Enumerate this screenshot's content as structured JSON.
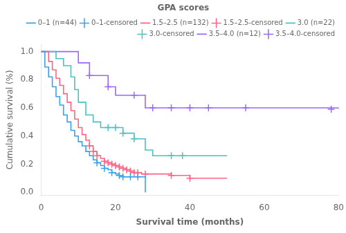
{
  "chart_data": {
    "type": "line",
    "title": "GPA scores",
    "xlabel": "Survival time (months)",
    "ylabel": "Cumulative survival (%)",
    "xlim": [
      0,
      80
    ],
    "ylim": [
      -0.02,
      1.05
    ],
    "xticks": [
      0,
      20,
      40,
      60,
      80
    ],
    "yticks": [
      {
        "value": 0.0,
        "label": "0.0"
      },
      0.2,
      0.4,
      0.6,
      0.8,
      {
        "value": 1.0,
        "label": "1.0"
      }
    ],
    "grid": false,
    "legend": "upper right",
    "series": [
      {
        "name": "0–1 (n=44)",
        "type": "step",
        "x": [
          0,
          1,
          2,
          3,
          4,
          5,
          6,
          7,
          8,
          9,
          10,
          11,
          12,
          13,
          14,
          15,
          16,
          17,
          18,
          19,
          20,
          21,
          22,
          23,
          24,
          25,
          26,
          27,
          28,
          28.01
        ],
        "values": [
          1.0,
          0.89,
          0.82,
          0.75,
          0.68,
          0.62,
          0.55,
          0.5,
          0.44,
          0.4,
          0.36,
          0.33,
          0.29,
          0.26,
          0.23,
          0.21,
          0.19,
          0.17,
          0.16,
          0.14,
          0.13,
          0.12,
          0.11,
          0.11,
          0.11,
          0.11,
          0.11,
          0.11,
          0.11,
          0.0
        ]
      },
      {
        "name": "0–1-censored",
        "type": "scatter",
        "marker": "plus",
        "x": [
          15,
          17,
          19,
          21,
          22,
          24,
          26
        ],
        "values": [
          0.21,
          0.17,
          0.14,
          0.12,
          0.11,
          0.11,
          0.11
        ]
      },
      {
        "name": "1.5–2.5 (n=132)",
        "type": "step",
        "x": [
          0,
          2,
          3,
          4,
          5,
          6,
          7,
          8,
          9,
          10,
          11,
          12,
          13,
          14,
          15,
          16,
          17,
          18,
          19,
          20,
          21,
          22,
          23,
          24,
          25,
          26,
          27,
          28,
          29,
          30,
          35,
          40,
          50
        ],
        "values": [
          1.0,
          0.93,
          0.87,
          0.81,
          0.76,
          0.7,
          0.64,
          0.58,
          0.52,
          0.46,
          0.41,
          0.37,
          0.33,
          0.29,
          0.26,
          0.24,
          0.22,
          0.21,
          0.2,
          0.19,
          0.18,
          0.17,
          0.16,
          0.15,
          0.14,
          0.14,
          0.13,
          0.13,
          0.13,
          0.13,
          0.12,
          0.1,
          0.1
        ]
      },
      {
        "name": "1.5–2.5-censored",
        "type": "scatter",
        "marker": "plus",
        "x": [
          13,
          14,
          15,
          17,
          18,
          19,
          20,
          21,
          22,
          23,
          24,
          25,
          26,
          28,
          35,
          40
        ],
        "values": [
          0.33,
          0.29,
          0.26,
          0.22,
          0.21,
          0.2,
          0.19,
          0.18,
          0.17,
          0.16,
          0.15,
          0.14,
          0.14,
          0.13,
          0.12,
          0.1
        ]
      },
      {
        "name": "3.0 (n=22)",
        "type": "step",
        "x": [
          0,
          4,
          6,
          8,
          9,
          10,
          12,
          14,
          16,
          18,
          20,
          22,
          25,
          28,
          30,
          35,
          40,
          45,
          50
        ],
        "values": [
          1.0,
          0.95,
          0.9,
          0.82,
          0.73,
          0.64,
          0.55,
          0.5,
          0.46,
          0.46,
          0.46,
          0.42,
          0.38,
          0.3,
          0.26,
          0.26,
          0.26,
          0.26,
          0.26
        ]
      },
      {
        "name": "3.0-censored",
        "type": "scatter",
        "marker": "plus",
        "x": [
          18,
          20,
          22,
          25,
          35,
          38
        ],
        "values": [
          0.46,
          0.46,
          0.42,
          0.38,
          0.26,
          0.26
        ]
      },
      {
        "name": "3.5–4.0 (n=12)",
        "type": "step",
        "x": [
          0,
          5,
          10,
          13,
          15,
          18,
          20,
          22,
          25,
          28,
          30,
          35,
          40,
          45,
          50,
          55,
          60,
          70,
          80
        ],
        "values": [
          1.0,
          1.0,
          0.92,
          0.83,
          0.83,
          0.75,
          0.69,
          0.69,
          0.69,
          0.6,
          0.6,
          0.6,
          0.6,
          0.6,
          0.6,
          0.6,
          0.6,
          0.6,
          0.59
        ]
      },
      {
        "name": "3.5–4.0-censored",
        "type": "scatter",
        "marker": "plus",
        "x": [
          13,
          18,
          25,
          30,
          35,
          40,
          45,
          55,
          78
        ],
        "values": [
          0.83,
          0.75,
          0.69,
          0.6,
          0.6,
          0.6,
          0.6,
          0.6,
          0.59
        ]
      }
    ]
  }
}
